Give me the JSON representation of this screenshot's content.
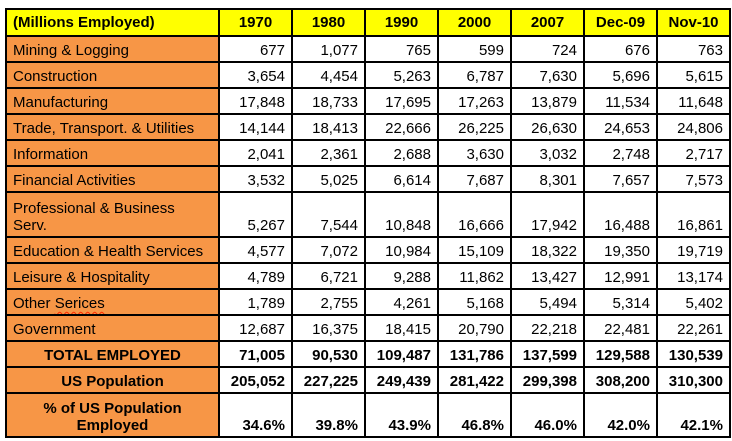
{
  "colors": {
    "header_bg": "#FFFF00",
    "label_bg": "#F79646",
    "border": "#000000",
    "spellcheck_underline": "#FF2A00",
    "text": "#000000",
    "cell_bg": "#FFFFFF"
  },
  "chart_data": {
    "type": "table",
    "title": "(Millions Employed)",
    "columns": [
      "(Millions Employed)",
      "1970",
      "1980",
      "1990",
      "2000",
      "2007",
      "Dec-09",
      "Nov-10"
    ],
    "rows": [
      {
        "label": "Mining & Logging",
        "style": "sector",
        "values": [
          "677",
          "1,077",
          "765",
          "599",
          "724",
          "676",
          "763"
        ]
      },
      {
        "label": "Construction",
        "style": "sector",
        "values": [
          "3,654",
          "4,454",
          "5,263",
          "6,787",
          "7,630",
          "5,696",
          "5,615"
        ]
      },
      {
        "label": "Manufacturing",
        "style": "sector",
        "values": [
          "17,848",
          "18,733",
          "17,695",
          "17,263",
          "13,879",
          "11,534",
          "11,648"
        ]
      },
      {
        "label": "Trade, Transport. & Utilities",
        "style": "sector",
        "values": [
          "14,144",
          "18,413",
          "22,666",
          "26,225",
          "26,630",
          "24,653",
          "24,806"
        ]
      },
      {
        "label": "Information",
        "style": "sector",
        "values": [
          "2,041",
          "2,361",
          "2,688",
          "3,630",
          "3,032",
          "2,748",
          "2,717"
        ]
      },
      {
        "label": "Financial Activities",
        "style": "sector",
        "values": [
          "3,532",
          "5,025",
          "6,614",
          "7,687",
          "8,301",
          "7,657",
          "7,573"
        ]
      },
      {
        "label": "Professional & Business\nServ.",
        "style": "sector",
        "tall": true,
        "values": [
          "5,267",
          "7,544",
          "10,848",
          "16,666",
          "17,942",
          "16,488",
          "16,861"
        ]
      },
      {
        "label": "Education & Health Services",
        "style": "sector",
        "values": [
          "4,577",
          "7,072",
          "10,984",
          "15,109",
          "18,322",
          "19,350",
          "19,719"
        ]
      },
      {
        "label": "Leisure & Hospitality",
        "style": "sector",
        "values": [
          "4,789",
          "6,721",
          "9,288",
          "11,862",
          "13,427",
          "12,991",
          "13,174"
        ]
      },
      {
        "label": "Other Serices",
        "style": "sector",
        "misspelled": "Serices",
        "values": [
          "1,789",
          "2,755",
          "4,261",
          "5,168",
          "5,494",
          "5,314",
          "5,402"
        ]
      },
      {
        "label": "Government",
        "style": "sector",
        "values": [
          "12,687",
          "16,375",
          "18,415",
          "20,790",
          "22,218",
          "22,481",
          "22,261"
        ]
      },
      {
        "label": "TOTAL EMPLOYED",
        "style": "total",
        "values": [
          "71,005",
          "90,530",
          "109,487",
          "131,786",
          "137,599",
          "129,588",
          "130,539"
        ]
      },
      {
        "label": "US Population",
        "style": "total",
        "values": [
          "205,052",
          "227,225",
          "249,439",
          "281,422",
          "299,398",
          "308,200",
          "310,300"
        ]
      },
      {
        "label": "% of US Population\nEmployed",
        "style": "total",
        "tall_last": true,
        "values": [
          "34.6%",
          "39.8%",
          "43.9%",
          "46.8%",
          "46.0%",
          "42.0%",
          "42.1%"
        ]
      }
    ]
  }
}
